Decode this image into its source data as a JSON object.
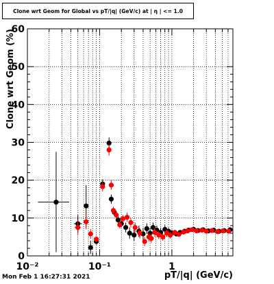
{
  "chart_data": {
    "type": "scatter",
    "title": "Clone wrt Geom for Global vs pT/|q| (GeV/c) at | η | <= 1.0",
    "xlabel": "pT/|q| (GeV/c)",
    "ylabel": "Clone wrt Geom (%)",
    "xscale": "log",
    "xlim": [
      0.01,
      7.0
    ],
    "ylim": [
      0,
      60
    ],
    "x_ticks": [
      {
        "value": 0.01,
        "label": "10⁻²"
      },
      {
        "value": 0.1,
        "label": "10⁻¹"
      },
      {
        "value": 1,
        "label": "1"
      }
    ],
    "y_ticks": [
      0,
      10,
      20,
      30,
      40,
      50,
      60
    ],
    "grid": true,
    "timestamp": "Mon Feb  1 16:27:31 2021",
    "series": [
      {
        "color": "#000000",
        "points": [
          {
            "x": 0.025,
            "y": 14.2,
            "xlo": 0.014,
            "xhi": 0.038,
            "ylo": 1.0,
            "yhi": 27.5
          },
          {
            "x": 0.05,
            "y": 8.5,
            "xlo": 0.044,
            "xhi": 0.057,
            "ylo": 6.2,
            "yhi": 10.8
          },
          {
            "x": 0.065,
            "y": 13.2,
            "xlo": 0.06,
            "xhi": 0.07,
            "ylo": 7.5,
            "yhi": 18.7
          },
          {
            "x": 0.075,
            "y": 2.2,
            "xlo": 0.07,
            "xhi": 0.08,
            "ylo": 0.5,
            "yhi": 4.0
          },
          {
            "x": 0.09,
            "y": 3.8,
            "xlo": 0.085,
            "xhi": 0.095,
            "ylo": 3.0,
            "yhi": 4.6
          },
          {
            "x": 0.11,
            "y": 19.0,
            "xlo": 0.105,
            "xhi": 0.115,
            "ylo": 17.8,
            "yhi": 20.2
          },
          {
            "x": 0.135,
            "y": 29.8,
            "xlo": 0.13,
            "xhi": 0.14,
            "ylo": 28.3,
            "yhi": 31.3
          },
          {
            "x": 0.145,
            "y": 15.0,
            "xlo": 0.14,
            "xhi": 0.15,
            "ylo": 13.8,
            "yhi": 16.2
          },
          {
            "x": 0.16,
            "y": 11.5,
            "xlo": 0.155,
            "xhi": 0.165,
            "ylo": 10.5,
            "yhi": 12.5
          },
          {
            "x": 0.18,
            "y": 9.5,
            "xlo": 0.175,
            "xhi": 0.185,
            "ylo": 8.5,
            "yhi": 10.5
          },
          {
            "x": 0.2,
            "y": 8.5,
            "xlo": 0.195,
            "xhi": 0.205,
            "ylo": 7.5,
            "yhi": 9.5
          },
          {
            "x": 0.23,
            "y": 7.5,
            "xlo": 0.22,
            "xhi": 0.24,
            "ylo": 6.2,
            "yhi": 8.8
          },
          {
            "x": 0.26,
            "y": 6.0,
            "xlo": 0.25,
            "xhi": 0.27,
            "ylo": 4.5,
            "yhi": 7.5
          },
          {
            "x": 0.3,
            "y": 5.5,
            "xlo": 0.29,
            "xhi": 0.31,
            "ylo": 4.0,
            "yhi": 7.0
          },
          {
            "x": 0.35,
            "y": 6.5,
            "xlo": 0.34,
            "xhi": 0.36,
            "ylo": 5.0,
            "yhi": 8.0
          },
          {
            "x": 0.4,
            "y": 5.8,
            "xlo": 0.39,
            "xhi": 0.41,
            "ylo": 4.2,
            "yhi": 7.4
          },
          {
            "x": 0.45,
            "y": 7.2,
            "xlo": 0.44,
            "xhi": 0.46,
            "ylo": 5.8,
            "yhi": 8.6
          },
          {
            "x": 0.5,
            "y": 6.0,
            "xlo": 0.49,
            "xhi": 0.51,
            "ylo": 4.6,
            "yhi": 7.4
          },
          {
            "x": 0.55,
            "y": 7.5,
            "xlo": 0.54,
            "xhi": 0.56,
            "ylo": 6.2,
            "yhi": 8.8
          },
          {
            "x": 0.62,
            "y": 6.8,
            "xlo": 0.6,
            "xhi": 0.64,
            "ylo": 5.6,
            "yhi": 8.0
          },
          {
            "x": 0.7,
            "y": 6.2,
            "xlo": 0.68,
            "xhi": 0.72,
            "ylo": 5.0,
            "yhi": 7.4
          },
          {
            "x": 0.8,
            "y": 7.0,
            "xlo": 0.78,
            "xhi": 0.82,
            "ylo": 5.9,
            "yhi": 8.1
          },
          {
            "x": 0.9,
            "y": 6.5,
            "xlo": 0.88,
            "xhi": 0.92,
            "ylo": 5.5,
            "yhi": 7.5
          },
          {
            "x": 1.0,
            "y": 6.0,
            "xlo": 0.97,
            "xhi": 1.03,
            "ylo": 5.1,
            "yhi": 6.9
          },
          {
            "x": 1.15,
            "y": 5.8,
            "xlo": 1.1,
            "xhi": 1.2,
            "ylo": 5.1,
            "yhi": 6.5
          },
          {
            "x": 1.3,
            "y": 6.2,
            "xlo": 1.25,
            "xhi": 1.35,
            "ylo": 5.6,
            "yhi": 6.8
          },
          {
            "x": 1.5,
            "y": 6.5,
            "xlo": 1.45,
            "xhi": 1.55,
            "ylo": 6.0,
            "yhi": 7.0
          },
          {
            "x": 1.7,
            "y": 6.8,
            "xlo": 1.65,
            "xhi": 1.75,
            "ylo": 6.3,
            "yhi": 7.3
          },
          {
            "x": 2.0,
            "y": 7.0,
            "xlo": 1.9,
            "xhi": 2.1,
            "ylo": 6.6,
            "yhi": 7.4
          },
          {
            "x": 2.3,
            "y": 6.7,
            "xlo": 2.2,
            "xhi": 2.4,
            "ylo": 6.3,
            "yhi": 7.1
          },
          {
            "x": 2.7,
            "y": 6.9,
            "xlo": 2.6,
            "xhi": 2.8,
            "ylo": 6.5,
            "yhi": 7.3
          },
          {
            "x": 3.2,
            "y": 6.6,
            "xlo": 3.05,
            "xhi": 3.35,
            "ylo": 6.2,
            "yhi": 7.0
          },
          {
            "x": 3.8,
            "y": 6.8,
            "xlo": 3.6,
            "xhi": 4.0,
            "ylo": 6.4,
            "yhi": 7.2
          },
          {
            "x": 4.5,
            "y": 6.5,
            "xlo": 4.3,
            "xhi": 4.7,
            "ylo": 6.1,
            "yhi": 6.9
          },
          {
            "x": 5.3,
            "y": 6.7,
            "xlo": 5.1,
            "xhi": 5.5,
            "ylo": 6.3,
            "yhi": 7.1
          },
          {
            "x": 6.4,
            "y": 6.9,
            "xlo": 6.1,
            "xhi": 6.7,
            "ylo": 6.5,
            "yhi": 7.3
          }
        ]
      },
      {
        "color": "#ff0000",
        "points": [
          {
            "x": 0.05,
            "y": 7.5,
            "xlo": 0.045,
            "xhi": 0.055,
            "ylo": 5.5,
            "yhi": 9.5
          },
          {
            "x": 0.065,
            "y": 9.0,
            "xlo": 0.06,
            "xhi": 0.07,
            "ylo": 7.0,
            "yhi": 11.0
          },
          {
            "x": 0.075,
            "y": 5.8,
            "xlo": 0.07,
            "xhi": 0.08,
            "ylo": 4.5,
            "yhi": 7.1
          },
          {
            "x": 0.09,
            "y": 4.4,
            "xlo": 0.085,
            "xhi": 0.095,
            "ylo": 3.6,
            "yhi": 5.2
          },
          {
            "x": 0.11,
            "y": 18.3,
            "xlo": 0.105,
            "xhi": 0.115,
            "ylo": 17.0,
            "yhi": 19.6
          },
          {
            "x": 0.135,
            "y": 28.0,
            "xlo": 0.13,
            "xhi": 0.14,
            "ylo": 26.5,
            "yhi": 29.5
          },
          {
            "x": 0.145,
            "y": 18.7,
            "xlo": 0.14,
            "xhi": 0.15,
            "ylo": 17.5,
            "yhi": 19.9
          },
          {
            "x": 0.155,
            "y": 12.0,
            "xlo": 0.15,
            "xhi": 0.16,
            "ylo": 11.0,
            "yhi": 13.0
          },
          {
            "x": 0.17,
            "y": 10.8,
            "xlo": 0.165,
            "xhi": 0.175,
            "ylo": 9.8,
            "yhi": 11.8
          },
          {
            "x": 0.19,
            "y": 8.2,
            "xlo": 0.185,
            "xhi": 0.195,
            "ylo": 7.2,
            "yhi": 9.2
          },
          {
            "x": 0.21,
            "y": 9.8,
            "xlo": 0.205,
            "xhi": 0.215,
            "ylo": 8.8,
            "yhi": 10.8
          },
          {
            "x": 0.24,
            "y": 10.2,
            "xlo": 0.23,
            "xhi": 0.25,
            "ylo": 9.0,
            "yhi": 11.4
          },
          {
            "x": 0.27,
            "y": 8.8,
            "xlo": 0.26,
            "xhi": 0.28,
            "ylo": 7.5,
            "yhi": 10.1
          },
          {
            "x": 0.31,
            "y": 7.5,
            "xlo": 0.3,
            "xhi": 0.32,
            "ylo": 6.2,
            "yhi": 8.8
          },
          {
            "x": 0.36,
            "y": 6.0,
            "xlo": 0.35,
            "xhi": 0.37,
            "ylo": 4.6,
            "yhi": 7.4
          },
          {
            "x": 0.42,
            "y": 3.8,
            "xlo": 0.41,
            "xhi": 0.43,
            "ylo": 2.6,
            "yhi": 5.0
          },
          {
            "x": 0.48,
            "y": 5.0,
            "xlo": 0.47,
            "xhi": 0.49,
            "ylo": 3.8,
            "yhi": 6.2
          },
          {
            "x": 0.52,
            "y": 4.6,
            "xlo": 0.51,
            "xhi": 0.53,
            "ylo": 3.4,
            "yhi": 5.8
          },
          {
            "x": 0.58,
            "y": 6.2,
            "xlo": 0.56,
            "xhi": 0.6,
            "ylo": 5.0,
            "yhi": 7.4
          },
          {
            "x": 0.66,
            "y": 5.5,
            "xlo": 0.64,
            "xhi": 0.68,
            "ylo": 4.4,
            "yhi": 6.6
          },
          {
            "x": 0.75,
            "y": 5.0,
            "xlo": 0.73,
            "xhi": 0.77,
            "ylo": 4.0,
            "yhi": 6.0
          },
          {
            "x": 0.85,
            "y": 6.0,
            "xlo": 0.83,
            "xhi": 0.87,
            "ylo": 5.0,
            "yhi": 7.0
          },
          {
            "x": 0.95,
            "y": 5.5,
            "xlo": 0.92,
            "xhi": 0.98,
            "ylo": 4.6,
            "yhi": 6.4
          },
          {
            "x": 1.1,
            "y": 6.2,
            "xlo": 1.05,
            "xhi": 1.15,
            "ylo": 5.5,
            "yhi": 6.9
          },
          {
            "x": 1.25,
            "y": 5.7,
            "xlo": 1.2,
            "xhi": 1.3,
            "ylo": 5.1,
            "yhi": 6.3
          },
          {
            "x": 1.45,
            "y": 6.3,
            "xlo": 1.4,
            "xhi": 1.5,
            "ylo": 5.8,
            "yhi": 6.8
          },
          {
            "x": 1.65,
            "y": 6.6,
            "xlo": 1.6,
            "xhi": 1.7,
            "ylo": 6.1,
            "yhi": 7.1
          },
          {
            "x": 1.9,
            "y": 6.9,
            "xlo": 1.8,
            "xhi": 2.0,
            "ylo": 6.5,
            "yhi": 7.3
          },
          {
            "x": 2.2,
            "y": 6.6,
            "xlo": 2.1,
            "xhi": 2.3,
            "ylo": 6.2,
            "yhi": 7.0
          },
          {
            "x": 2.6,
            "y": 6.8,
            "xlo": 2.5,
            "xhi": 2.7,
            "ylo": 6.4,
            "yhi": 7.2
          },
          {
            "x": 3.0,
            "y": 6.5,
            "xlo": 2.85,
            "xhi": 3.15,
            "ylo": 6.1,
            "yhi": 6.9
          },
          {
            "x": 3.6,
            "y": 6.7,
            "xlo": 3.4,
            "xhi": 3.8,
            "ylo": 6.3,
            "yhi": 7.1
          },
          {
            "x": 4.3,
            "y": 6.4,
            "xlo": 4.1,
            "xhi": 4.5,
            "ylo": 6.0,
            "yhi": 6.8
          },
          {
            "x": 5.1,
            "y": 6.6,
            "xlo": 4.9,
            "xhi": 5.3,
            "ylo": 6.2,
            "yhi": 7.0
          },
          {
            "x": 6.1,
            "y": 6.5,
            "xlo": 5.8,
            "xhi": 6.4,
            "ylo": 6.1,
            "yhi": 6.9
          }
        ]
      }
    ]
  }
}
